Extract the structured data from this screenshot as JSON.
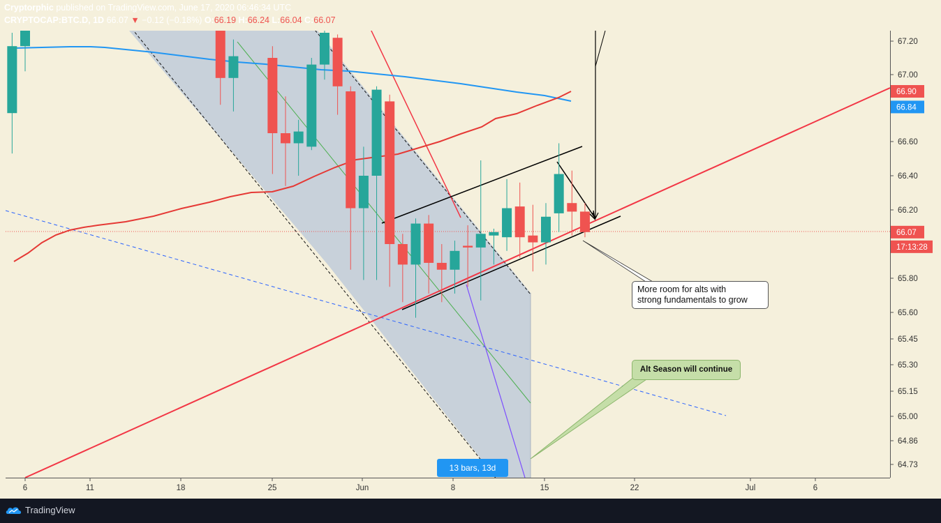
{
  "header": {
    "publisher": "Cryptorphic",
    "published_text": "published on TradingView.com, June 17, 2020 06:46:34 UTC",
    "symbol": "CRYPTOCAP:BTC.D, 1D",
    "last": "66.07",
    "change": "−0.12 (−0.18%)",
    "o_label": "O:",
    "o": "66.19",
    "h_label": "H:",
    "h": "66.24",
    "l_label": "L:",
    "l": "66.04",
    "c_label": "C:",
    "c": "66.07"
  },
  "footer": {
    "brand": "TradingView"
  },
  "colors": {
    "background": "#f5f0dc",
    "bull": "#26a69a",
    "bear": "#ef5350",
    "ma_blue": "#2196f3",
    "ma_red": "#e53935",
    "channel_fill": "#c5cfd9",
    "note_green": "#c5dea8",
    "badge_blue": "#2196f3"
  },
  "chart_data": {
    "type": "candlestick",
    "timeframe": "1D",
    "price_scale": {
      "ticks": [
        "67.20",
        "67.00",
        "66.60",
        "66.40",
        "66.20",
        "65.80",
        "65.60",
        "65.45",
        "65.30",
        "65.15",
        "65.00",
        "64.86",
        "64.73"
      ]
    },
    "time_scale": {
      "ticks": [
        "6",
        "11",
        "18",
        "25",
        "Jun",
        "8",
        "15",
        "22",
        "Jul",
        "6"
      ]
    },
    "price_labels": [
      {
        "value": "66.90",
        "color": "#ef5350"
      },
      {
        "value": "66.84",
        "color": "#2196f3"
      },
      {
        "value": "66.07",
        "color": "#ef5350"
      },
      {
        "value": "17:13:28",
        "color": "#ef5350"
      }
    ],
    "candles": [
      {
        "d": "May 5",
        "o": 66.77,
        "h": 67.25,
        "l": 66.53,
        "c": 67.17
      },
      {
        "d": "May 6",
        "o": 67.17,
        "h": 67.36,
        "l": 67.02,
        "c": 67.33
      },
      {
        "d": "May 21",
        "o": 67.49,
        "h": 67.76,
        "l": 66.82,
        "c": 66.98
      },
      {
        "d": "May 22",
        "o": 66.98,
        "h": 67.21,
        "l": 66.78,
        "c": 67.11
      },
      {
        "d": "May 25",
        "o": 67.1,
        "h": 67.17,
        "l": 66.41,
        "c": 66.65
      },
      {
        "d": "May 26",
        "o": 66.65,
        "h": 66.87,
        "l": 66.34,
        "c": 66.59
      },
      {
        "d": "May 27",
        "o": 66.59,
        "h": 66.73,
        "l": 66.4,
        "c": 66.66
      },
      {
        "d": "May 28",
        "o": 66.57,
        "h": 67.1,
        "l": 66.55,
        "c": 67.06
      },
      {
        "d": "May 29",
        "o": 67.06,
        "h": 67.37,
        "l": 66.97,
        "c": 67.25
      },
      {
        "d": "May 30",
        "o": 67.22,
        "h": 67.24,
        "l": 66.76,
        "c": 66.93
      },
      {
        "d": "May 31",
        "o": 66.9,
        "h": 66.93,
        "l": 65.85,
        "c": 66.21
      },
      {
        "d": "Jun 1",
        "o": 66.21,
        "h": 66.57,
        "l": 65.79,
        "c": 66.4
      },
      {
        "d": "Jun 2",
        "o": 66.4,
        "h": 66.93,
        "l": 65.79,
        "c": 66.91
      },
      {
        "d": "Jun 3",
        "o": 66.84,
        "h": 66.88,
        "l": 65.75,
        "c": 66.0
      },
      {
        "d": "Jun 4",
        "o": 66.0,
        "h": 66.06,
        "l": 65.66,
        "c": 65.88
      },
      {
        "d": "Jun 5",
        "o": 65.88,
        "h": 66.15,
        "l": 65.57,
        "c": 66.12
      },
      {
        "d": "Jun 6",
        "o": 66.12,
        "h": 66.17,
        "l": 65.71,
        "c": 65.89
      },
      {
        "d": "Jun 7",
        "o": 65.89,
        "h": 66.0,
        "l": 65.66,
        "c": 65.85
      },
      {
        "d": "Jun 8",
        "o": 65.85,
        "h": 66.02,
        "l": 65.71,
        "c": 65.96
      },
      {
        "d": "Jun 9",
        "o": 65.99,
        "h": 66.11,
        "l": 65.75,
        "c": 65.98
      },
      {
        "d": "Jun 10",
        "o": 65.98,
        "h": 66.49,
        "l": 65.67,
        "c": 66.06
      },
      {
        "d": "Jun 11",
        "o": 66.05,
        "h": 66.09,
        "l": 65.88,
        "c": 66.07
      },
      {
        "d": "Jun 12",
        "o": 66.04,
        "h": 66.38,
        "l": 65.96,
        "c": 66.21
      },
      {
        "d": "Jun 13",
        "o": 66.22,
        "h": 66.36,
        "l": 65.92,
        "c": 66.04
      },
      {
        "d": "Jun 14",
        "o": 66.05,
        "h": 66.23,
        "l": 65.84,
        "c": 66.01
      },
      {
        "d": "Jun 15",
        "o": 66.01,
        "h": 66.24,
        "l": 65.88,
        "c": 66.16
      },
      {
        "d": "Jun 16",
        "o": 66.18,
        "h": 66.59,
        "l": 66.07,
        "c": 66.41
      },
      {
        "d": "Jun 17",
        "o": 66.24,
        "h": 66.43,
        "l": 66.05,
        "c": 66.19
      },
      {
        "d": "Jun 18",
        "o": 66.19,
        "h": 66.24,
        "l": 66.04,
        "c": 66.07
      }
    ],
    "current_price": 66.07,
    "annotations": [
      {
        "text": "More room  for alts with\nstrong fundamentals to grow",
        "style": "callout"
      },
      {
        "text": "Alt Season will continue",
        "style": "green-callout"
      },
      {
        "text": "13 bars, 13d",
        "style": "date-range-badge"
      }
    ]
  }
}
